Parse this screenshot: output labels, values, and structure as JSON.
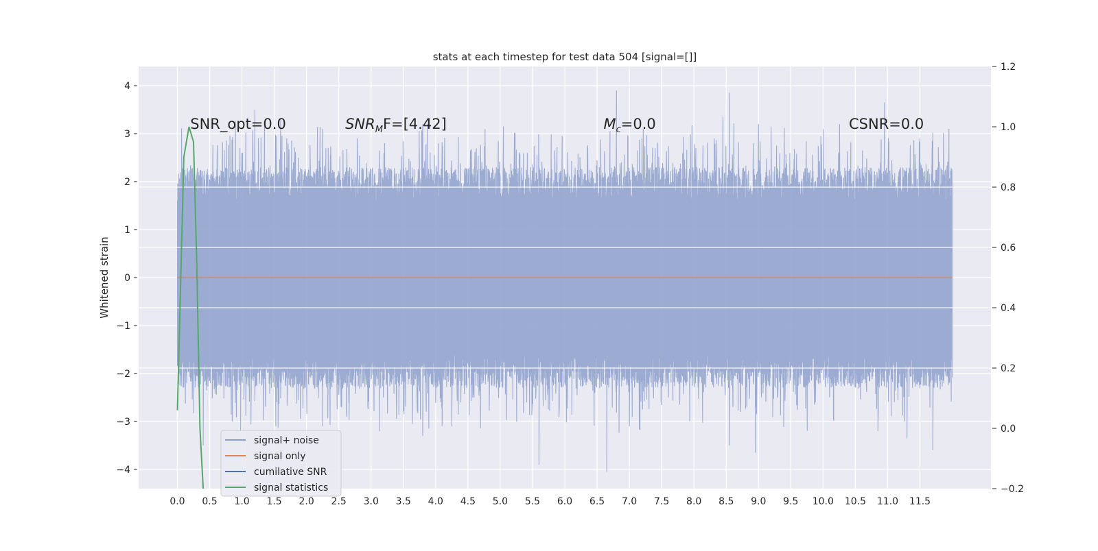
{
  "chart_data": {
    "type": "line",
    "title": "stats at each timestep for test data 504 [signal=[]]",
    "ylabel_left": "Whitened strain",
    "ylabel_right": "",
    "xlabel": "",
    "xlim": [
      -0.6,
      12.6
    ],
    "ylim_left": [
      -4.4,
      4.4
    ],
    "ylim_right": [
      -0.2,
      1.2
    ],
    "grid": true,
    "x_ticks": [
      "0.0",
      "0.5",
      "1.0",
      "1.5",
      "2.0",
      "2.5",
      "3.0",
      "3.5",
      "4.0",
      "4.5",
      "5.0",
      "5.5",
      "6.0",
      "6.5",
      "7.0",
      "7.5",
      "8.0",
      "8.5",
      "9.0",
      "9.5",
      "10.0",
      "10.5",
      "11.0",
      "11.5"
    ],
    "y_ticks_left": [
      "4",
      "3",
      "2",
      "1",
      "0",
      "−1",
      "−2",
      "−3",
      "−4"
    ],
    "y_ticks_right": [
      "1.2",
      "1.0",
      "0.8",
      "0.6",
      "0.4",
      "0.2",
      "0.0",
      "−0.2"
    ],
    "annotations": [
      {
        "text": "SNR_opt=0.0",
        "x": 0.2,
        "y": 3.1
      },
      {
        "text": "SNR",
        "sub": "M",
        "suffix": "F=[4.42]",
        "x": 2.6,
        "y": 3.1
      },
      {
        "text": "M",
        "sub": "c",
        "suffix": "=0.0",
        "x": 6.6,
        "y": 3.1
      },
      {
        "text": "CSNR=0.0",
        "x": 10.4,
        "y": 3.1
      }
    ],
    "legend": {
      "placement": "lower-left",
      "entries": [
        {
          "label": "signal+ noise",
          "color": "#8da0cb"
        },
        {
          "label": "signal only",
          "color": "#dd8452"
        },
        {
          "label": "cumilative SNR",
          "color": "#4c72b0"
        },
        {
          "label": "signal statistics",
          "color": "#55a868"
        }
      ]
    },
    "series": [
      {
        "name": "signal+ noise",
        "axis": "left",
        "color": "#8da0cb",
        "description_range": [
          0.0,
          12.0
        ],
        "envelope": {
          "typical_max": 1.9,
          "typical_min": -1.9
        },
        "peaks": [
          [
            1.0,
            2.6
          ],
          [
            1.2,
            3.5
          ],
          [
            1.6,
            3.3
          ],
          [
            2.25,
            3.1
          ],
          [
            3.8,
            3.2
          ],
          [
            5.05,
            3.15
          ],
          [
            6.7,
            3.05
          ],
          [
            6.8,
            3.9
          ],
          [
            7.4,
            2.7
          ],
          [
            8.45,
            3.35
          ],
          [
            8.55,
            3.85
          ],
          [
            9.0,
            3.2
          ],
          [
            10.95,
            3.65
          ],
          [
            11.5,
            2.9
          ],
          [
            11.95,
            3.1
          ]
        ],
        "troughs": [
          [
            0.4,
            -3.5
          ],
          [
            0.85,
            -3.0
          ],
          [
            0.98,
            -3.2
          ],
          [
            2.25,
            -3.1
          ],
          [
            3.8,
            -3.3
          ],
          [
            4.25,
            -3.1
          ],
          [
            5.6,
            -3.9
          ],
          [
            6.65,
            -4.05
          ],
          [
            7.0,
            -3.1
          ],
          [
            8.55,
            -3.5
          ],
          [
            8.95,
            -3.65
          ],
          [
            10.85,
            -3.2
          ],
          [
            11.3,
            -3.35
          ],
          [
            11.7,
            -3.6
          ]
        ]
      },
      {
        "name": "signal only",
        "axis": "left",
        "color": "#dd8452",
        "x": [
          0.0,
          12.0
        ],
        "values": [
          0.0,
          0.0
        ]
      },
      {
        "name": "signal statistics",
        "axis": "right",
        "color": "#55a868",
        "x": [
          0.0,
          0.1,
          0.18,
          0.25,
          0.3,
          0.35,
          0.4
        ],
        "values": [
          0.06,
          0.9,
          1.0,
          0.95,
          0.55,
          0.0,
          -0.2
        ]
      }
    ]
  }
}
